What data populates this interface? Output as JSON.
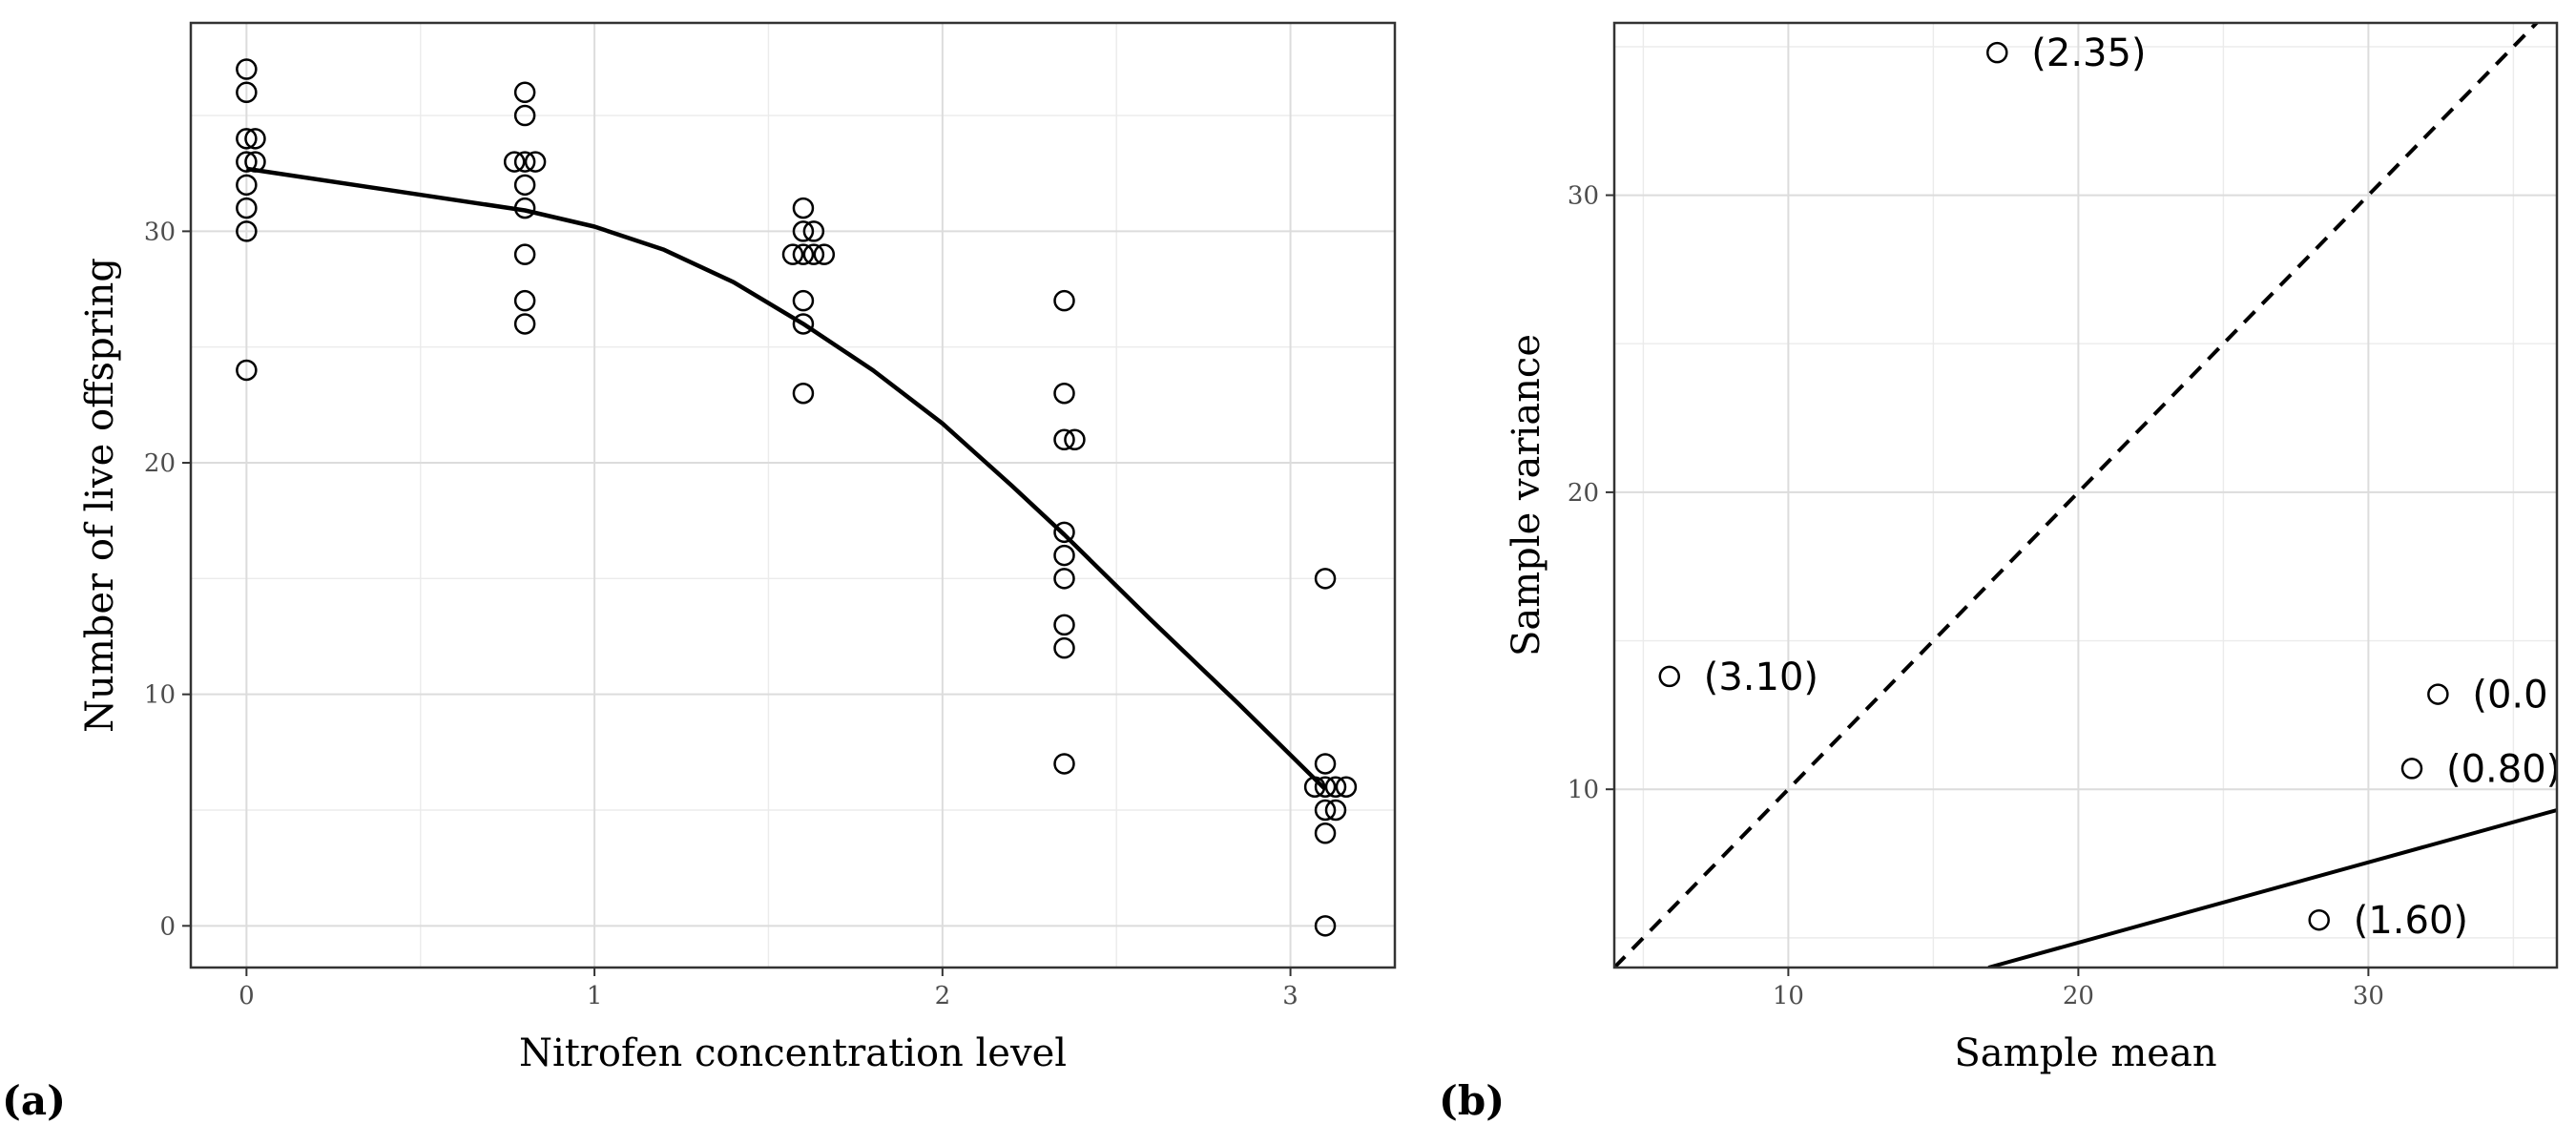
{
  "chart_data": [
    {
      "type": "scatter",
      "panel_label": "(a)",
      "xlabel": "Nitrofen concentration level",
      "ylabel": "Number of live offspring",
      "xlim": [
        -0.16,
        3.3
      ],
      "ylim": [
        -1.8,
        39
      ],
      "xticks": [
        0,
        1,
        2,
        3
      ],
      "yticks": [
        0,
        10,
        20,
        30
      ],
      "grid": true,
      "points": [
        [
          0,
          37
        ],
        [
          0,
          36
        ],
        [
          0,
          34
        ],
        [
          0.025,
          34
        ],
        [
          0,
          33
        ],
        [
          0.025,
          33
        ],
        [
          0,
          32
        ],
        [
          0,
          31
        ],
        [
          0,
          30
        ],
        [
          0,
          24
        ],
        [
          0.8,
          36
        ],
        [
          0.8,
          35
        ],
        [
          0.77,
          33
        ],
        [
          0.8,
          33
        ],
        [
          0.83,
          33
        ],
        [
          0.8,
          32
        ],
        [
          0.8,
          31
        ],
        [
          0.8,
          29
        ],
        [
          0.8,
          27
        ],
        [
          0.8,
          26
        ],
        [
          1.6,
          31
        ],
        [
          1.6,
          30
        ],
        [
          1.63,
          30
        ],
        [
          1.57,
          29
        ],
        [
          1.6,
          29
        ],
        [
          1.63,
          29
        ],
        [
          1.66,
          29
        ],
        [
          1.6,
          27
        ],
        [
          1.6,
          26
        ],
        [
          1.6,
          23
        ],
        [
          2.35,
          27
        ],
        [
          2.35,
          23
        ],
        [
          2.35,
          21
        ],
        [
          2.38,
          21
        ],
        [
          2.35,
          17
        ],
        [
          2.35,
          16
        ],
        [
          2.35,
          15
        ],
        [
          2.35,
          13
        ],
        [
          2.35,
          12
        ],
        [
          2.35,
          7
        ],
        [
          3.1,
          15
        ],
        [
          3.1,
          7
        ],
        [
          3.07,
          6
        ],
        [
          3.1,
          6
        ],
        [
          3.13,
          6
        ],
        [
          3.16,
          6
        ],
        [
          3.1,
          5
        ],
        [
          3.13,
          5
        ],
        [
          3.1,
          4
        ],
        [
          3.1,
          0
        ]
      ],
      "smooth_line": [
        [
          0,
          32.7
        ],
        [
          0.4,
          31.8
        ],
        [
          0.8,
          30.9
        ],
        [
          1.0,
          30.2
        ],
        [
          1.2,
          29.2
        ],
        [
          1.4,
          27.8
        ],
        [
          1.6,
          26.0
        ],
        [
          1.8,
          24.0
        ],
        [
          2.0,
          21.7
        ],
        [
          2.2,
          19.0
        ],
        [
          2.35,
          16.9
        ],
        [
          2.6,
          13.2
        ],
        [
          2.85,
          9.6
        ],
        [
          3.1,
          5.9
        ]
      ]
    },
    {
      "type": "scatter",
      "panel_label": "(b)",
      "xlabel": "Sample mean",
      "ylabel": "Sample variance",
      "xlim": [
        4,
        36.5
      ],
      "ylim": [
        4,
        35.8
      ],
      "xticks": [
        10,
        20,
        30
      ],
      "yticks": [
        10,
        20,
        30
      ],
      "grid": true,
      "points": [
        {
          "x": 17.2,
          "y": 34.8,
          "label": "(2.35)"
        },
        {
          "x": 5.9,
          "y": 13.8,
          "label": "(3.10)"
        },
        {
          "x": 32.4,
          "y": 13.2,
          "label": "(0.0"
        },
        {
          "x": 31.5,
          "y": 10.7,
          "label": "(0.80)"
        },
        {
          "x": 28.3,
          "y": 5.6,
          "label": "(1.60)"
        }
      ],
      "reference_line": {
        "style": "dashed",
        "slope": 1,
        "intercept": 0
      },
      "fitted_line": {
        "style": "solid",
        "from": [
          16.9,
          4.0
        ],
        "to": [
          36.5,
          9.3
        ]
      }
    }
  ]
}
